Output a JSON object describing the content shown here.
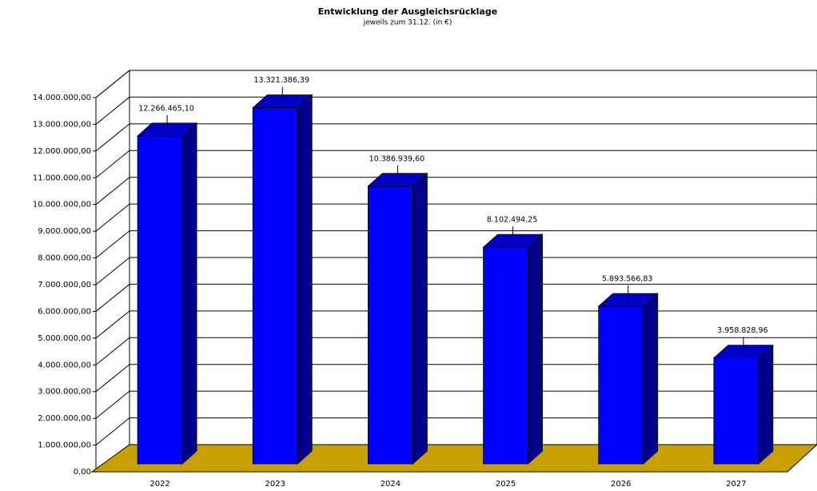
{
  "chart_data": {
    "type": "bar3d",
    "title": "Entwicklung der Ausgleichsrücklage",
    "subtitle": "jeweils zum 31.12. (in €)",
    "categories": [
      "2022",
      "2023",
      "2024",
      "2025",
      "2026",
      "2027"
    ],
    "values": [
      12266465.1,
      13321386.39,
      10386939.6,
      8102494.25,
      5893566.83,
      3958828.96
    ],
    "value_labels": [
      "12.266.465,10",
      "13.321.386,39",
      "10.386.939,60",
      "8.102.494,25",
      "5.893.566,83",
      "3.958.828,96"
    ],
    "color": "#0000ff",
    "ylim": [
      0,
      14000000
    ],
    "yticks": [
      {
        "value": 0,
        "label": "0,00"
      },
      {
        "value": 1000000,
        "label": "1.000.000,00"
      },
      {
        "value": 2000000,
        "label": "2.000.000,00"
      },
      {
        "value": 3000000,
        "label": "3.000.000,00"
      },
      {
        "value": 4000000,
        "label": "4.000.000,00"
      },
      {
        "value": 5000000,
        "label": "5.000.000,00"
      },
      {
        "value": 6000000,
        "label": "6.000.000,00"
      },
      {
        "value": 7000000,
        "label": "7.000.000,00"
      },
      {
        "value": 8000000,
        "label": "8.000.000,00"
      },
      {
        "value": 9000000,
        "label": "9.000.000,00"
      },
      {
        "value": 10000000,
        "label": "10.000.000,00"
      },
      {
        "value": 11000000,
        "label": "11.000.000,00"
      },
      {
        "value": 12000000,
        "label": "12.000.000,00"
      },
      {
        "value": 13000000,
        "label": "13.000.000,00"
      },
      {
        "value": 14000000,
        "label": "14.000.000,00"
      }
    ],
    "grid": true
  }
}
